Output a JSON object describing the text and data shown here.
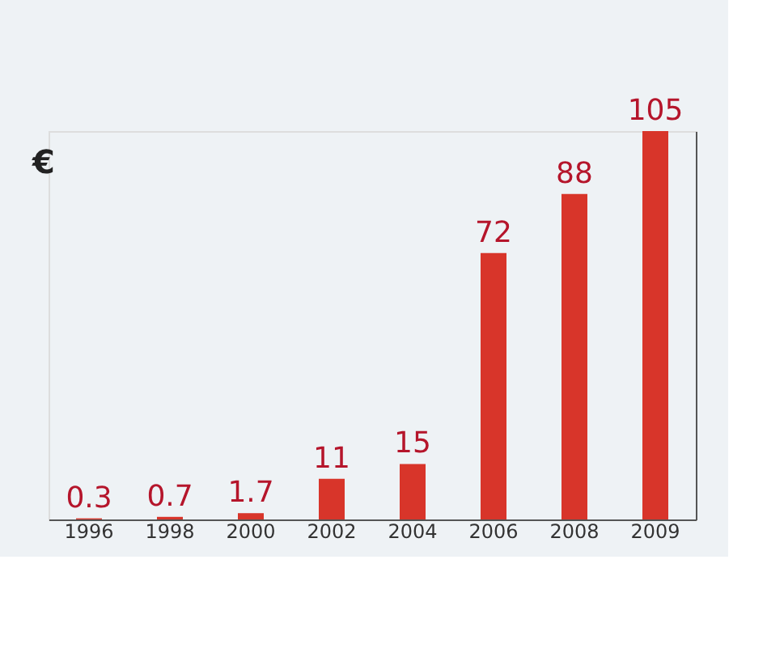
{
  "chart_data": {
    "type": "bar",
    "categories": [
      "1996",
      "1998",
      "2000",
      "2002",
      "2004",
      "2006",
      "2008",
      "2009"
    ],
    "values": [
      0.3,
      0.7,
      1.7,
      11,
      15,
      72,
      88,
      105
    ],
    "color": "#d8352a",
    "data_labels": true,
    "tick_labels": "x",
    "grid": false,
    "annotations": [
      "€"
    ]
  }
}
